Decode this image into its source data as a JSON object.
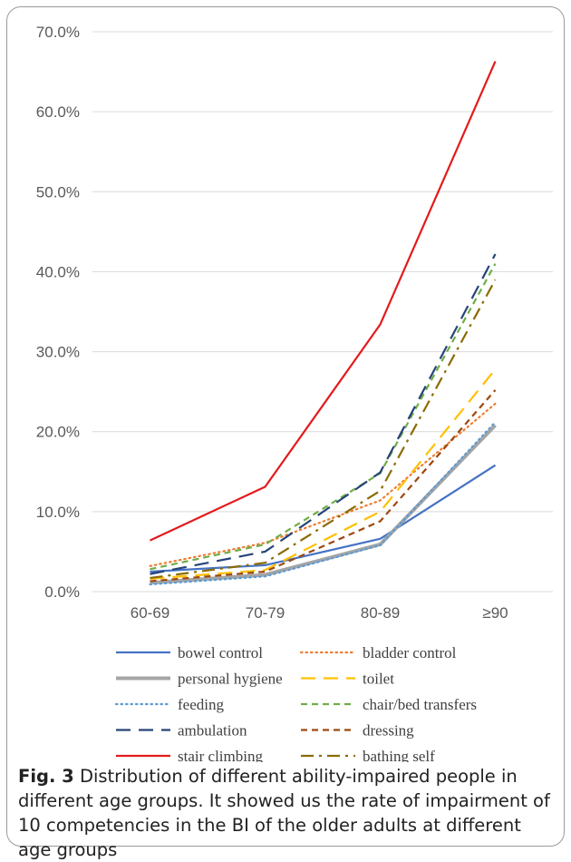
{
  "caption": {
    "label": "Fig. 3",
    "text": "Distribution of different ability-impaired people in different age groups. It showed us the rate of impairment of 10 competencies in the BI of the older adults at different age groups"
  },
  "chart_data": {
    "type": "line",
    "title": "",
    "xlabel": "",
    "ylabel": "",
    "categories": [
      "60-69",
      "70-79",
      "80-89",
      "≥90"
    ],
    "ylim": [
      0,
      70
    ],
    "yticks": [
      "0.0%",
      "10.0%",
      "20.0%",
      "30.0%",
      "40.0%",
      "50.0%",
      "60.0%",
      "70.0%"
    ],
    "grid": true,
    "legend_position": "bottom",
    "series": [
      {
        "name": "bowel control",
        "values": [
          2.5,
          3.3,
          6.6,
          15.8
        ],
        "color": "#4472C4",
        "dash": "solid",
        "width": 2.2
      },
      {
        "name": "bladder control",
        "values": [
          3.2,
          6.1,
          11.4,
          23.5
        ],
        "color": "#ED7D31",
        "dash": "dot",
        "width": 2.2
      },
      {
        "name": "personal hygiene",
        "values": [
          1.1,
          2.1,
          5.9,
          20.8
        ],
        "color": "#A5A5A5",
        "dash": "solid",
        "width": 4
      },
      {
        "name": "toilet",
        "values": [
          1.6,
          2.7,
          10.0,
          27.8
        ],
        "color": "#FFC000",
        "dash": "longdash",
        "width": 2.2
      },
      {
        "name": "feeding",
        "values": [
          0.9,
          1.9,
          5.8,
          21.2
        ],
        "color": "#5B9BD5",
        "dash": "dot",
        "width": 2.2
      },
      {
        "name": "chair/bed transfers",
        "values": [
          2.8,
          5.9,
          14.8,
          41.0
        ],
        "color": "#70AD47",
        "dash": "dash",
        "width": 2.2
      },
      {
        "name": "ambulation",
        "values": [
          2.2,
          5.0,
          14.9,
          42.2
        ],
        "color": "#264478",
        "dash": "longdash",
        "width": 2.2
      },
      {
        "name": "dressing",
        "values": [
          1.3,
          2.5,
          8.8,
          25.2
        ],
        "color": "#9E480E",
        "dash": "dash",
        "width": 2.2
      },
      {
        "name": "stair climbing",
        "values": [
          6.4,
          13.1,
          33.4,
          66.3
        ],
        "color": "#E41A1C",
        "dash": "solid",
        "width": 2.2
      },
      {
        "name": "bathing self",
        "values": [
          1.7,
          3.6,
          12.6,
          39.0
        ],
        "color": "#8B6B00",
        "dash": "dashdot",
        "width": 2.2
      }
    ]
  }
}
